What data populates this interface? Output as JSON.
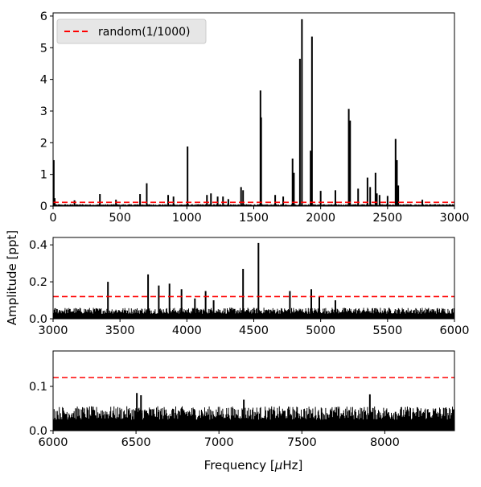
{
  "chart_data": [
    {
      "type": "line",
      "panel": "top",
      "xlim": [
        0,
        3000
      ],
      "ylim": [
        0,
        6.1
      ],
      "xticks": [
        0,
        500,
        1000,
        1500,
        2000,
        2500,
        3000
      ],
      "xtick_labels": [
        "0",
        "500",
        "1000",
        "1500",
        "2000",
        "2500",
        "3000"
      ],
      "yticks": [
        0,
        1,
        2,
        3,
        4,
        5,
        6
      ],
      "ytick_labels": [
        "0",
        "1",
        "2",
        "3",
        "4",
        "5",
        "6"
      ],
      "noise_level": 0.06,
      "threshold": 0.12,
      "peaks": [
        {
          "x": 5,
          "y": 1.45
        },
        {
          "x": 12,
          "y": 0.25
        },
        {
          "x": 160,
          "y": 0.18
        },
        {
          "x": 350,
          "y": 0.38
        },
        {
          "x": 470,
          "y": 0.2
        },
        {
          "x": 650,
          "y": 0.38
        },
        {
          "x": 700,
          "y": 0.72
        },
        {
          "x": 860,
          "y": 0.35
        },
        {
          "x": 900,
          "y": 0.3
        },
        {
          "x": 1005,
          "y": 1.88
        },
        {
          "x": 1150,
          "y": 0.35
        },
        {
          "x": 1180,
          "y": 0.4
        },
        {
          "x": 1230,
          "y": 0.3
        },
        {
          "x": 1270,
          "y": 0.3
        },
        {
          "x": 1310,
          "y": 0.22
        },
        {
          "x": 1405,
          "y": 0.6
        },
        {
          "x": 1420,
          "y": 0.5
        },
        {
          "x": 1550,
          "y": 3.65
        },
        {
          "x": 1555,
          "y": 2.8
        },
        {
          "x": 1660,
          "y": 0.35
        },
        {
          "x": 1720,
          "y": 0.3
        },
        {
          "x": 1790,
          "y": 1.5
        },
        {
          "x": 1800,
          "y": 1.05
        },
        {
          "x": 1845,
          "y": 4.65
        },
        {
          "x": 1860,
          "y": 5.9
        },
        {
          "x": 1925,
          "y": 1.75
        },
        {
          "x": 1935,
          "y": 5.35
        },
        {
          "x": 2000,
          "y": 0.48
        },
        {
          "x": 2110,
          "y": 0.5
        },
        {
          "x": 2210,
          "y": 3.07
        },
        {
          "x": 2220,
          "y": 2.7
        },
        {
          "x": 2280,
          "y": 0.55
        },
        {
          "x": 2350,
          "y": 0.9
        },
        {
          "x": 2370,
          "y": 0.6
        },
        {
          "x": 2410,
          "y": 1.05
        },
        {
          "x": 2420,
          "y": 0.4
        },
        {
          "x": 2440,
          "y": 0.35
        },
        {
          "x": 2500,
          "y": 0.32
        },
        {
          "x": 2560,
          "y": 2.12
        },
        {
          "x": 2570,
          "y": 1.45
        },
        {
          "x": 2580,
          "y": 0.65
        },
        {
          "x": 2760,
          "y": 0.2
        }
      ],
      "legend": {
        "position": "upper-left",
        "entries": [
          {
            "label": "random(1/1000)",
            "color": "#ff0000",
            "style": "dashed"
          }
        ]
      }
    },
    {
      "type": "line",
      "panel": "middle",
      "xlim": [
        3000,
        6000
      ],
      "ylim": [
        0,
        0.44
      ],
      "xticks": [
        3000,
        3500,
        4000,
        4500,
        5000,
        5500,
        6000
      ],
      "xtick_labels": [
        "3000",
        "3500",
        "4000",
        "4500",
        "5000",
        "5500",
        "6000"
      ],
      "yticks": [
        0,
        0.2,
        0.4
      ],
      "ytick_labels": [
        "0.0",
        "0.2",
        "0.4"
      ],
      "noise_level": 0.06,
      "threshold": 0.12,
      "peaks": [
        {
          "x": 3410,
          "y": 0.2
        },
        {
          "x": 3710,
          "y": 0.24
        },
        {
          "x": 3790,
          "y": 0.18
        },
        {
          "x": 3870,
          "y": 0.19
        },
        {
          "x": 3960,
          "y": 0.16
        },
        {
          "x": 4060,
          "y": 0.11
        },
        {
          "x": 4140,
          "y": 0.15
        },
        {
          "x": 4200,
          "y": 0.1
        },
        {
          "x": 4420,
          "y": 0.27
        },
        {
          "x": 4535,
          "y": 0.41
        },
        {
          "x": 4770,
          "y": 0.15
        },
        {
          "x": 4930,
          "y": 0.16
        },
        {
          "x": 4990,
          "y": 0.12
        },
        {
          "x": 5110,
          "y": 0.1
        }
      ]
    },
    {
      "type": "line",
      "panel": "bottom",
      "xlim": [
        6000,
        8420
      ],
      "ylim": [
        0,
        0.18
      ],
      "xticks": [
        6000,
        6500,
        7000,
        7500,
        8000
      ],
      "xtick_labels": [
        "6000",
        "6500",
        "7000",
        "7500",
        "8000"
      ],
      "yticks": [
        0,
        0.1
      ],
      "ytick_labels": [
        "0.0",
        "0.1"
      ],
      "noise_level": 0.055,
      "threshold": 0.12,
      "peaks": [
        {
          "x": 6505,
          "y": 0.085
        },
        {
          "x": 6530,
          "y": 0.08
        },
        {
          "x": 7910,
          "y": 0.082
        },
        {
          "x": 7150,
          "y": 0.07
        }
      ]
    }
  ],
  "axes_text": {
    "ylabel": "Amplitude [ppt]",
    "xlabel": "Frequency [$\\mu$Hz]",
    "xlabel_prefix": "Frequency [",
    "xlabel_mu": "μ",
    "xlabel_suffix": "Hz]"
  },
  "colors": {
    "signal": "#000000",
    "threshold": "#ff0000",
    "legend_bg": "#e6e6e6"
  }
}
